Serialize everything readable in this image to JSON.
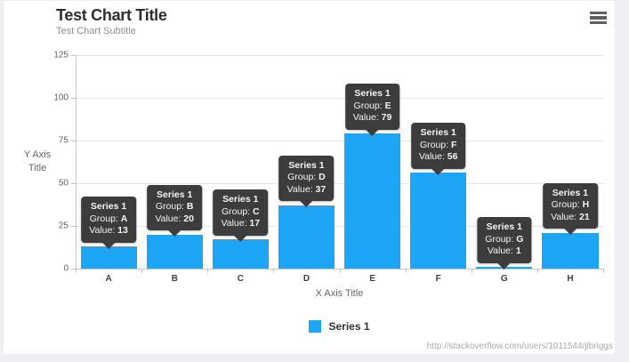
{
  "page": {
    "background_color": "#f0f0f3",
    "card_color": "#ffffff",
    "credit": "http://stackoverflow.com/users/1011544/jlbriggs"
  },
  "chart": {
    "title": "Test Chart Title",
    "subtitle": "Test Chart Subtitle",
    "y_axis_title": "Y Axis Title",
    "x_axis_title": "X Axis Title",
    "menu_icon": "hamburger-icon",
    "legend": {
      "label": "Series 1",
      "color": "#1ca6f5"
    }
  },
  "chart_data": {
    "type": "bar",
    "title": "Test Chart Title",
    "subtitle": "Test Chart Subtitle",
    "xlabel": "X Axis Title",
    "ylabel": "Y Axis Title",
    "categories": [
      "A",
      "B",
      "C",
      "D",
      "E",
      "F",
      "G",
      "H"
    ],
    "series": [
      {
        "name": "Series 1",
        "color": "#1ca6f5",
        "values": [
          13,
          20,
          17,
          37,
          79,
          56,
          1,
          21
        ]
      }
    ],
    "ylim": [
      0,
      125
    ],
    "yticks": [
      0,
      25,
      50,
      75,
      100,
      125
    ],
    "grid": true,
    "legend_position": "bottom-center",
    "tooltip_labels": {
      "series_label": "Series 1",
      "group_prefix": "Group:",
      "value_prefix": "Value:"
    },
    "tooltips": [
      {
        "series": "Series 1",
        "group": "A",
        "value": 13
      },
      {
        "series": "Series 1",
        "group": "B",
        "value": 20
      },
      {
        "series": "Series 1",
        "group": "C",
        "value": 17
      },
      {
        "series": "Series 1",
        "group": "D",
        "value": 37
      },
      {
        "series": "Series 1",
        "group": "E",
        "value": 79
      },
      {
        "series": "Series 1",
        "group": "F",
        "value": 56
      },
      {
        "series": "Series 1",
        "group": "G",
        "value": 1
      },
      {
        "series": "Series 1",
        "group": "H",
        "value": 21
      }
    ]
  }
}
